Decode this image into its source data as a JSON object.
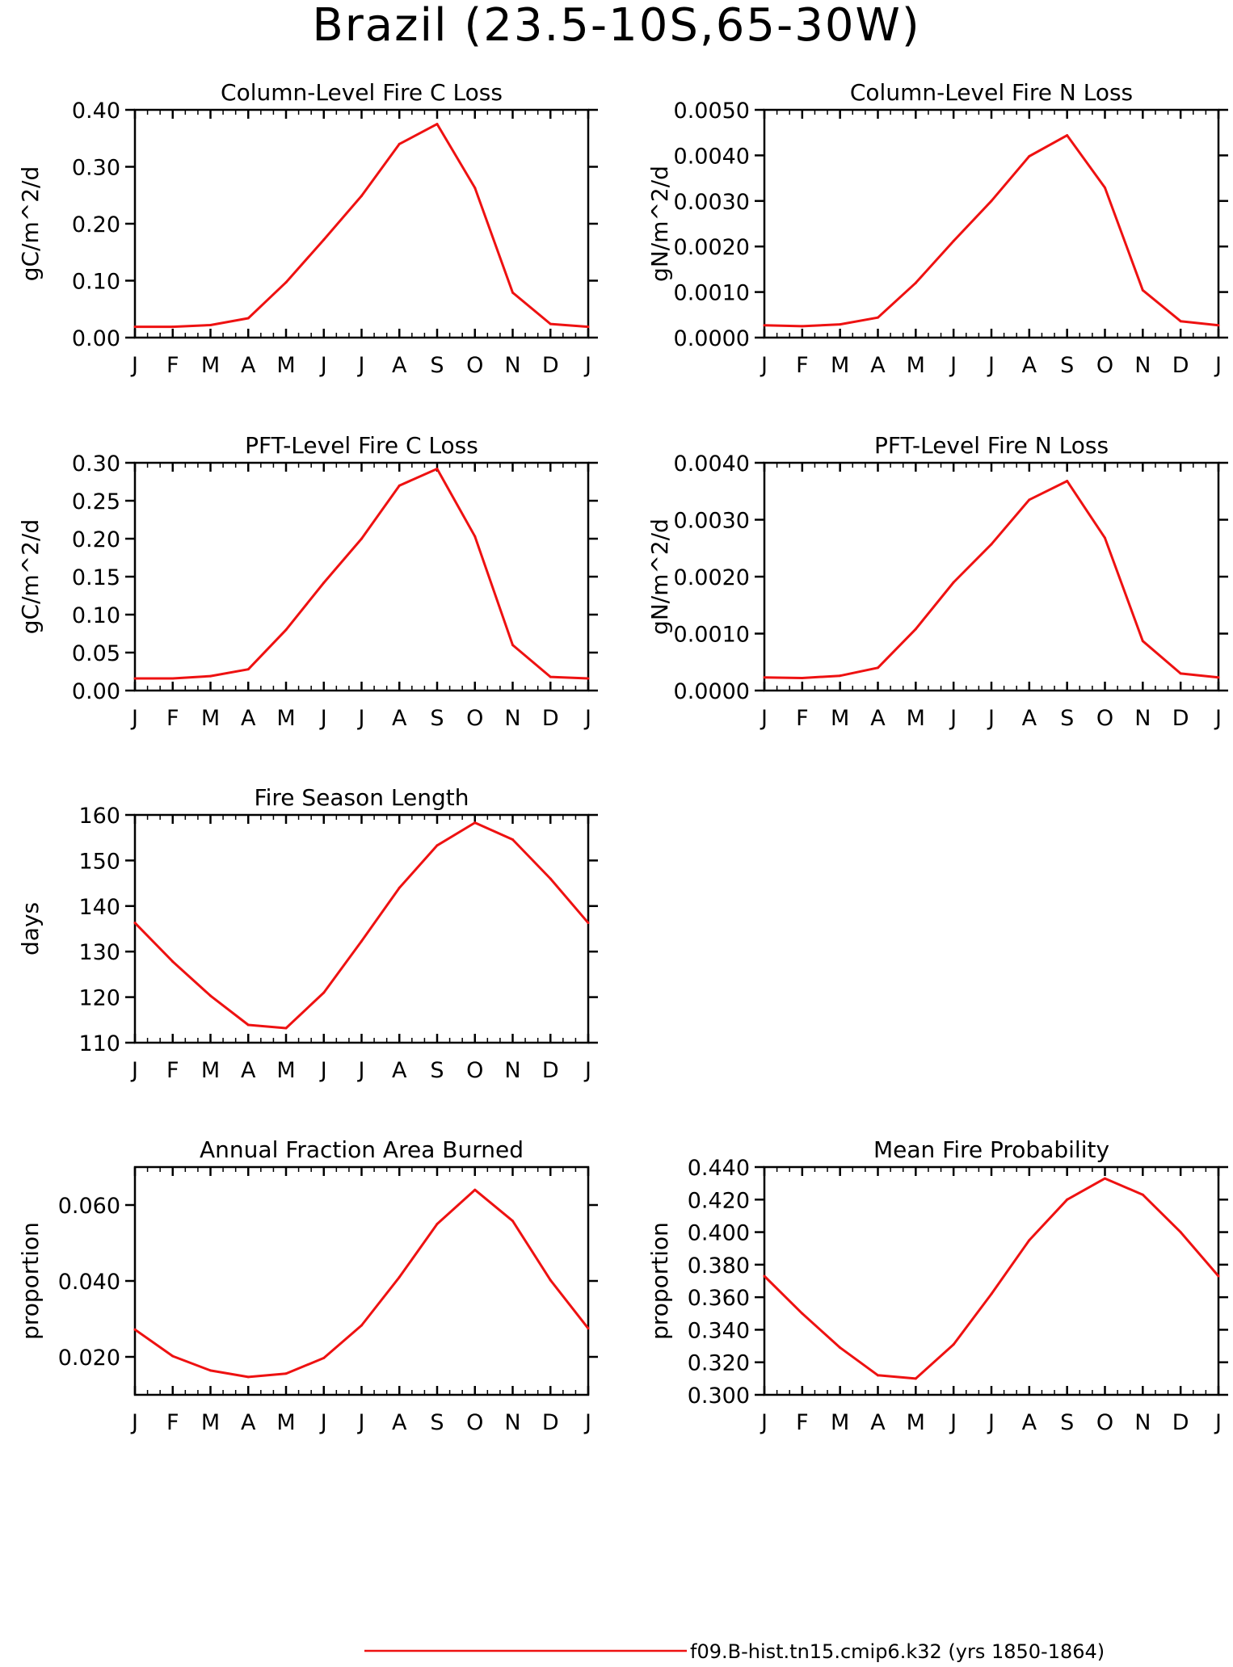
{
  "figure_title": "Brazil (23.5-10S,65-30W)",
  "legend": {
    "label": "f09.B-hist.tn15.cmip6.k32 (yrs 1850-1864)",
    "color": "#ee1111"
  },
  "line_color": "#ee1111",
  "x_tick_labels": [
    "J",
    "F",
    "M",
    "A",
    "M",
    "J",
    "J",
    "A",
    "S",
    "O",
    "N",
    "D",
    "J"
  ],
  "chart_data": [
    {
      "type": "line",
      "title": "Column-Level Fire C Loss",
      "ylabel": "gC/m^2/d",
      "ylim": [
        0,
        0.4
      ],
      "yticks": [
        0,
        0.1,
        0.2,
        0.3,
        0.4
      ],
      "ytick_labels": [
        "0.00",
        "0.10",
        "0.20",
        "0.30",
        "0.40"
      ],
      "categories": [
        "J",
        "F",
        "M",
        "A",
        "M",
        "J",
        "J",
        "A",
        "S",
        "O",
        "N",
        "D",
        "J"
      ],
      "values": [
        0.019,
        0.019,
        0.022,
        0.034,
        0.097,
        0.172,
        0.249,
        0.34,
        0.375,
        0.263,
        0.079,
        0.024,
        0.019
      ]
    },
    {
      "type": "line",
      "title": "Column-Level Fire N Loss",
      "ylabel": "gN/m^2/d",
      "ylim": [
        0,
        0.005
      ],
      "yticks": [
        0,
        0.001,
        0.002,
        0.003,
        0.004,
        0.005
      ],
      "ytick_labels": [
        "0.0000",
        "0.0010",
        "0.0020",
        "0.0030",
        "0.0040",
        "0.0050"
      ],
      "categories": [
        "J",
        "F",
        "M",
        "A",
        "M",
        "J",
        "J",
        "A",
        "S",
        "O",
        "N",
        "D",
        "J"
      ],
      "values": [
        0.00027,
        0.00025,
        0.00029,
        0.00044,
        0.0012,
        0.00212,
        0.003,
        0.00398,
        0.00444,
        0.00329,
        0.00104,
        0.00036,
        0.00027
      ]
    },
    {
      "type": "line",
      "title": "PFT-Level Fire C Loss",
      "ylabel": "gC/m^2/d",
      "ylim": [
        0,
        0.3
      ],
      "yticks": [
        0,
        0.05,
        0.1,
        0.15,
        0.2,
        0.25,
        0.3
      ],
      "ytick_labels": [
        "0.00",
        "0.05",
        "0.10",
        "0.15",
        "0.20",
        "0.25",
        "0.30"
      ],
      "categories": [
        "J",
        "F",
        "M",
        "A",
        "M",
        "J",
        "J",
        "A",
        "S",
        "O",
        "N",
        "D",
        "J"
      ],
      "values": [
        0.016,
        0.016,
        0.019,
        0.028,
        0.08,
        0.142,
        0.2,
        0.27,
        0.292,
        0.203,
        0.06,
        0.018,
        0.016
      ]
    },
    {
      "type": "line",
      "title": "PFT-Level Fire N Loss",
      "ylabel": "gN/m^2/d",
      "ylim": [
        0,
        0.004
      ],
      "yticks": [
        0,
        0.001,
        0.002,
        0.003,
        0.004
      ],
      "ytick_labels": [
        "0.0000",
        "0.0010",
        "0.0020",
        "0.0030",
        "0.0040"
      ],
      "categories": [
        "J",
        "F",
        "M",
        "A",
        "M",
        "J",
        "J",
        "A",
        "S",
        "O",
        "N",
        "D",
        "J"
      ],
      "values": [
        0.00023,
        0.00022,
        0.00026,
        0.0004,
        0.00108,
        0.0019,
        0.00257,
        0.00335,
        0.00368,
        0.00268,
        0.00087,
        0.0003,
        0.00023
      ]
    },
    {
      "type": "line",
      "title": "Fire Season Length",
      "ylabel": "days",
      "ylim": [
        110,
        160
      ],
      "yticks": [
        110,
        120,
        130,
        140,
        150,
        160
      ],
      "ytick_labels": [
        "110",
        "120",
        "130",
        "140",
        "150",
        "160"
      ],
      "categories": [
        "J",
        "F",
        "M",
        "A",
        "M",
        "J",
        "J",
        "A",
        "S",
        "O",
        "N",
        "D",
        "J"
      ],
      "values": [
        136.3,
        127.8,
        120.3,
        113.9,
        113.2,
        121.0,
        132.3,
        144.0,
        153.3,
        158.3,
        154.6,
        146.0,
        136.3
      ]
    },
    {
      "type": "line",
      "title": "Annual Fraction Area Burned",
      "ylabel": "proportion",
      "ylim": [
        0.01,
        0.07
      ],
      "yticks": [
        0.02,
        0.04,
        0.06
      ],
      "ytick_labels": [
        "0.020",
        "0.040",
        "0.060"
      ],
      "categories": [
        "J",
        "F",
        "M",
        "A",
        "M",
        "J",
        "J",
        "A",
        "S",
        "O",
        "N",
        "D",
        "J"
      ],
      "values": [
        0.0272,
        0.0202,
        0.0164,
        0.0147,
        0.0156,
        0.0197,
        0.0283,
        0.041,
        0.055,
        0.064,
        0.0558,
        0.0402,
        0.0275
      ]
    },
    {
      "type": "line",
      "title": "Mean Fire Probability",
      "ylabel": "proportion",
      "ylim": [
        0.3,
        0.44
      ],
      "yticks": [
        0.3,
        0.32,
        0.34,
        0.36,
        0.38,
        0.4,
        0.42,
        0.44
      ],
      "ytick_labels": [
        "0.300",
        "0.320",
        "0.340",
        "0.360",
        "0.380",
        "0.400",
        "0.420",
        "0.440"
      ],
      "categories": [
        "J",
        "F",
        "M",
        "A",
        "M",
        "J",
        "J",
        "A",
        "S",
        "O",
        "N",
        "D",
        "J"
      ],
      "values": [
        0.373,
        0.35,
        0.329,
        0.312,
        0.31,
        0.331,
        0.362,
        0.395,
        0.42,
        0.433,
        0.423,
        0.4,
        0.373
      ]
    }
  ]
}
